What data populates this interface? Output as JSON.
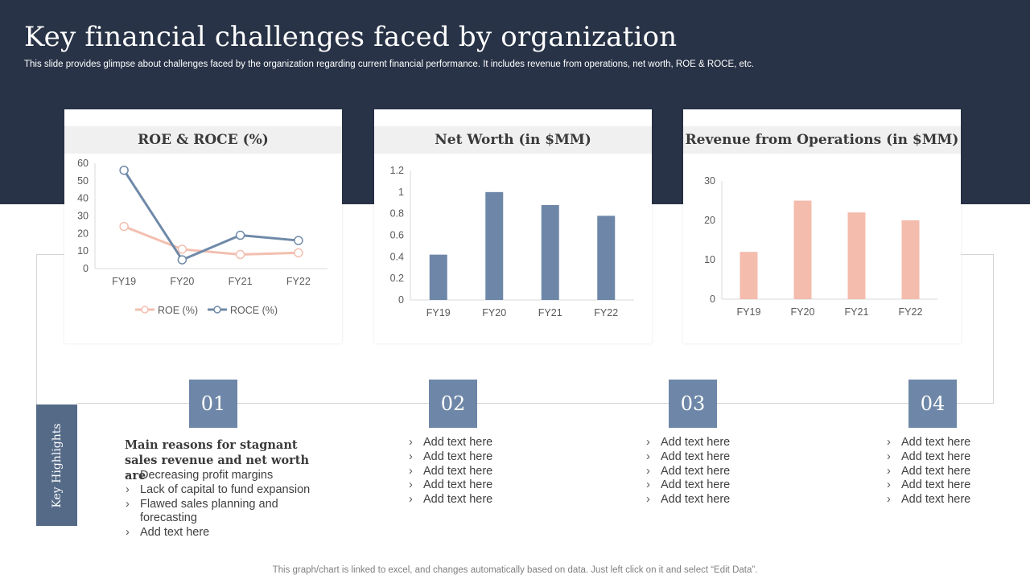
{
  "header": {
    "title": "Key financial challenges faced by organization",
    "subtitle": "This slide provides glimpse about challenges faced by the organization regarding current financial performance. It includes revenue from operations, net worth, ROE & ROCE,  etc."
  },
  "colors": {
    "header_bg": "#283347",
    "roe": "#f2bfb0",
    "roce": "#6f89a8",
    "networth_bar": "#6e87a8",
    "revenue_bar": "#f4bcad",
    "highlight_box": "#546a87",
    "number_box": "#6e87a8"
  },
  "chart_data": [
    {
      "type": "line",
      "title": "ROE & ROCE (%)",
      "categories": [
        "FY19",
        "FY20",
        "FY21",
        "FY22"
      ],
      "series": [
        {
          "name": "ROE (%)",
          "values": [
            24,
            11,
            8,
            9
          ]
        },
        {
          "name": "ROCE (%)",
          "values": [
            56,
            5,
            19,
            16
          ]
        }
      ],
      "ylim": [
        0,
        60
      ],
      "yticks": [
        "0",
        "10",
        "20",
        "30",
        "40",
        "50",
        "60"
      ],
      "legend": "bottom"
    },
    {
      "type": "bar",
      "title": "Net Worth (in $MM)",
      "categories": [
        "FY19",
        "FY20",
        "FY21",
        "FY22"
      ],
      "values": [
        0.42,
        1.0,
        0.88,
        0.78
      ],
      "ylim": [
        0,
        1.2
      ],
      "yticks": [
        "0",
        "0.2",
        "0.4",
        "0.6",
        "0.8",
        "1",
        "1.2"
      ]
    },
    {
      "type": "bar",
      "title": "Revenue from Operations (in $MM)",
      "categories": [
        "FY19",
        "FY20",
        "FY21",
        "FY22"
      ],
      "values": [
        12,
        25,
        22,
        20
      ],
      "ylim": [
        0,
        30
      ],
      "yticks": [
        "0",
        "10",
        "20",
        "30"
      ]
    }
  ],
  "highlights": {
    "label": "Key Highlights",
    "numbers": [
      "01",
      "02",
      "03",
      "04"
    ],
    "col1": {
      "heading": "Main reasons for stagnant sales revenue and net worth are",
      "items": [
        "Decreasing profit margins",
        "Lack of capital to fund expansion",
        "Flawed sales planning and forecasting",
        "Add text here"
      ]
    },
    "col2": {
      "items": [
        "Add text here",
        "Add text here",
        "Add text here",
        "Add text here",
        "Add text here"
      ]
    },
    "col3": {
      "items": [
        "Add text here",
        "Add text here",
        "Add text here",
        "Add text here",
        "Add text here"
      ]
    },
    "col4": {
      "items": [
        "Add text here",
        "Add text here",
        "Add text here",
        "Add text here",
        "Add text here"
      ]
    }
  },
  "footer": {
    "note": "This graph/chart is linked to excel,  and changes automatically based on data. Just left click on it and select “Edit Data”."
  }
}
